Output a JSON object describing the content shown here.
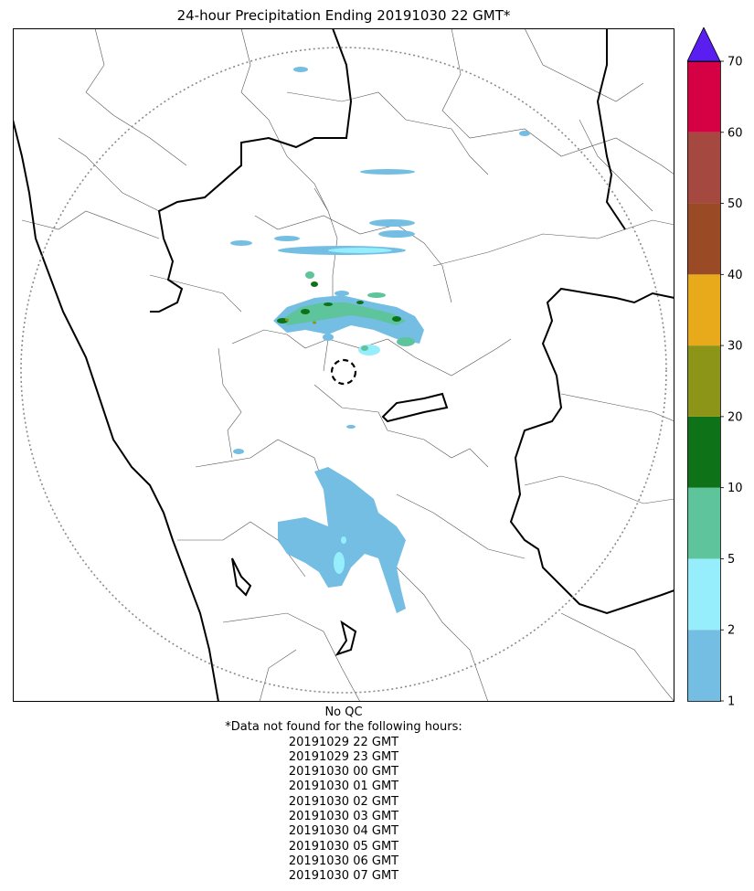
{
  "map": {
    "title": "24-hour Precipitation Ending 20191030 22 GMT*",
    "colorbar": {
      "levels": [
        "1",
        "2",
        "5",
        "10",
        "20",
        "30",
        "40",
        "50",
        "60",
        "70"
      ],
      "colors": [
        "#74bde3",
        "#96edfb",
        "#5ec49c",
        "#0e7219",
        "#8c9517",
        "#e8a91a",
        "#9a4b26",
        "#a5483f",
        "#d60044"
      ],
      "overflow_color": "#5a1ef0",
      "extend": "max"
    },
    "qc_status": "No QC",
    "missing_header": "*Data not found for the following hours:",
    "missing_hours": [
      "20191029 22 GMT",
      "20191029 23 GMT",
      "20191030 00 GMT",
      "20191030 01 GMT",
      "20191030 02 GMT",
      "20191030 03 GMT",
      "20191030 04 GMT",
      "20191030 05 GMT",
      "20191030 06 GMT",
      "20191030 07 GMT"
    ]
  }
}
